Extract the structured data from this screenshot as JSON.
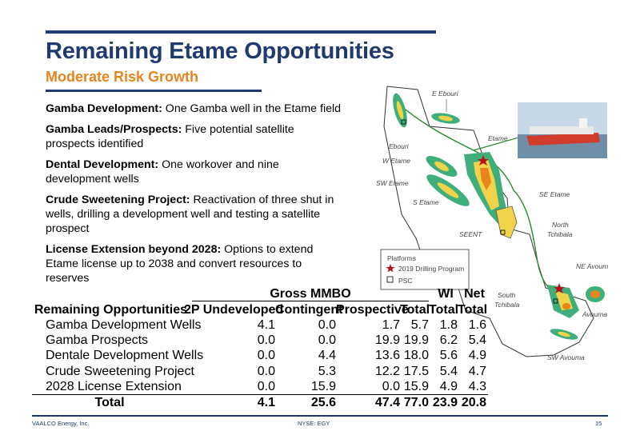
{
  "title": "Remaining Etame Opportunities",
  "subtitle": "Moderate Risk Growth",
  "bullets": [
    {
      "head": "Gamba Development:",
      "text": " One Gamba well in the Etame field"
    },
    {
      "head": "Gamba Leads/Prospects:",
      "text": " Five potential satellite prospects identified"
    },
    {
      "head": "Dental Development:",
      "text": " One workover and nine development wells"
    },
    {
      "head": "Crude Sweetening Project:",
      "text": " Reactivation of three shut in wells, drilling a development well and testing a satellite prospect"
    },
    {
      "head": "License Extension beyond 2028:",
      "text": " Options to extend Etame license up to 2038 and convert resources to reserves"
    }
  ],
  "table": {
    "group_header": "Gross MMBO",
    "wi_header": "WI",
    "net_header": "Net",
    "columns": [
      "Remaining Opportunities",
      "2P Undeveloped",
      "Contingent",
      "Prospective",
      "Total",
      "Total",
      "Total"
    ],
    "rows": [
      [
        "Gamba Development Wells",
        "4.1",
        "0.0",
        "1.7",
        "5.7",
        "1.8",
        "1.6"
      ],
      [
        "Gamba Prospects",
        "0.0",
        "0.0",
        "19.9",
        "19.9",
        "6.2",
        "5.4"
      ],
      [
        "Dentale Development Wells",
        "0.0",
        "4.4",
        "13.6",
        "18.0",
        "5.6",
        "4.9"
      ],
      [
        "Crude Sweetening Project",
        "0.0",
        "5.3",
        "12.2",
        "17.5",
        "5.4",
        "4.7"
      ],
      [
        "2028 License Extension",
        "0.0",
        "15.9",
        "0.0",
        "15.9",
        "4.9",
        "4.3"
      ]
    ],
    "total": [
      "Total",
      "4.1",
      "25.6",
      "47.4",
      "77.0",
      "23.9",
      "20.8"
    ]
  },
  "map": {
    "labels": {
      "e_ebouri": "E Ebouri",
      "ebouri": "Ebouri",
      "etame": "Etame",
      "w_etame": "W Etame",
      "sw_etame": "SW Etame",
      "s_etame": "S Etame",
      "se_etame": "SE Etame",
      "north_tchibala_1": "North",
      "north_tchibala_2": "Tchibala",
      "seent": "SEENT",
      "ne_avouma": "NE Avouma",
      "south_tchibala_1": "South",
      "south_tchibala_2": "Tchibala",
      "avouma": "Avouma",
      "sw_avouma": "SW Avouma"
    },
    "legend": {
      "platforms": "Platforms",
      "drilling": "2019 Drilling Program",
      "psc": "PSC"
    }
  },
  "footer": {
    "company": "VAALCO Energy, Inc.",
    "ticker": "NYSE: EGY",
    "page": "15"
  }
}
